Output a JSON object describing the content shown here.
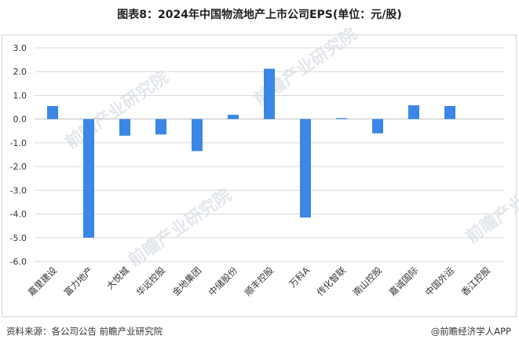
{
  "title": "图表8：2024年中国物流地产上市公司EPS(单位：元/股)",
  "footer": {
    "source": "资料来源：各公司公告 前瞻产业研究院",
    "brand": "@前瞻经济学人APP"
  },
  "watermark": "前瞻产业研究院",
  "colors": {
    "bar": "#3b86e6",
    "grid": "#d9d9d9",
    "axis": "#bfbfbf"
  },
  "chart_data": {
    "type": "bar",
    "title": "图表8：2024年中国物流地产上市公司EPS(单位：元/股)",
    "categories": [
      "嘉里建设",
      "富力地产",
      "大悦城",
      "华远控股",
      "金地集团",
      "中储股份",
      "顺丰控股",
      "万科A",
      "传化智联",
      "南山控股",
      "嘉诚国际",
      "中国外运",
      "香江控股"
    ],
    "values": [
      0.55,
      -5.0,
      -0.7,
      -0.65,
      -1.35,
      0.18,
      2.12,
      -4.15,
      0.04,
      -0.6,
      0.58,
      0.55,
      0.0
    ],
    "ylim": [
      -6.0,
      3.0
    ],
    "yticks": [
      "3.0",
      "2.0",
      "1.0",
      "0.0",
      "-1.0",
      "-2.0",
      "-3.0",
      "-4.0",
      "-5.0",
      "-6.0"
    ],
    "grid": true,
    "xlabel": "",
    "ylabel": ""
  }
}
